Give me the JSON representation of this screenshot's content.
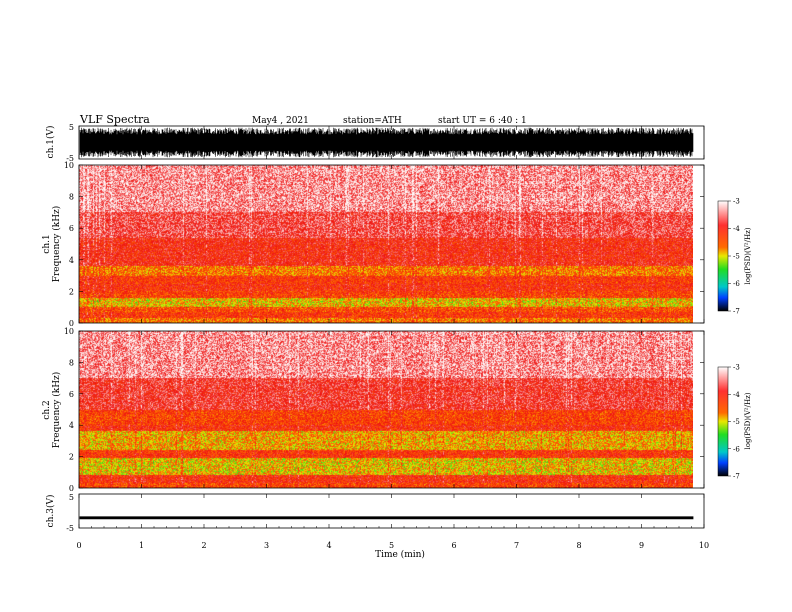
{
  "header": {
    "title": "VLF  Spectra",
    "date": "May4  , 2021",
    "station": "station=ATH",
    "start": "start  UT  =   6  :40 : 1"
  },
  "chart_data": [
    {
      "type": "line",
      "name": "ch1-waveform",
      "ylabel": "ch.1(V)",
      "ylim": [
        -5,
        5
      ],
      "yticks": [
        "5",
        "-5"
      ],
      "description_amplitude": 4.5
    },
    {
      "type": "heatmap",
      "name": "ch1-spectrogram",
      "ylabel": "ch.1\nFrequency (kHz)",
      "ylabel_lines": [
        "ch.1",
        "Frequency  (kHz)"
      ],
      "ylim": [
        0,
        10
      ],
      "yticks": [
        "0",
        "2",
        "4",
        "6",
        "8",
        "10"
      ],
      "bands": [
        {
          "f": [
            0.0,
            0.3
          ],
          "level": -4.6
        },
        {
          "f": [
            0.3,
            0.7
          ],
          "level": -4.2
        },
        {
          "f": [
            0.7,
            1.0
          ],
          "level": -4.4
        },
        {
          "f": [
            1.0,
            1.6
          ],
          "level": -4.9
        },
        {
          "f": [
            1.6,
            2.0
          ],
          "level": -4.3
        },
        {
          "f": [
            2.0,
            2.5
          ],
          "level": -4.1
        },
        {
          "f": [
            2.5,
            3.0
          ],
          "level": -4.2
        },
        {
          "f": [
            3.0,
            3.6
          ],
          "level": -4.6
        },
        {
          "f": [
            3.6,
            5.4
          ],
          "level": -4.0
        },
        {
          "f": [
            5.4,
            7.0
          ],
          "level": -3.7
        },
        {
          "f": [
            7.0,
            10.0
          ],
          "level": -3.4
        }
      ],
      "colorbar": {
        "label": "log(PSD)(V²/Hz)",
        "ticks": [
          "-3",
          "-4",
          "-5",
          "-6",
          "-7"
        ],
        "range": [
          -7,
          -3
        ]
      }
    },
    {
      "type": "heatmap",
      "name": "ch2-spectrogram",
      "ylabel_lines": [
        "ch.2",
        "Frequency  (kHz)"
      ],
      "ylim": [
        0,
        10
      ],
      "yticks": [
        "0",
        "2",
        "4",
        "6",
        "8",
        "10"
      ],
      "bands": [
        {
          "f": [
            0.0,
            0.3
          ],
          "level": -4.3
        },
        {
          "f": [
            0.3,
            0.8
          ],
          "level": -4.1
        },
        {
          "f": [
            0.8,
            1.9
          ],
          "level": -4.9
        },
        {
          "f": [
            1.9,
            2.4
          ],
          "level": -4.2
        },
        {
          "f": [
            2.4,
            3.6
          ],
          "level": -4.8
        },
        {
          "f": [
            3.6,
            4.0
          ],
          "level": -4.1
        },
        {
          "f": [
            4.0,
            5.0
          ],
          "level": -4.3
        },
        {
          "f": [
            5.0,
            7.0
          ],
          "level": -3.8
        },
        {
          "f": [
            7.0,
            10.0
          ],
          "level": -3.4
        }
      ],
      "colorbar": {
        "label": "log(PSD)(V²/Hz)",
        "ticks": [
          "-3",
          "-4",
          "-5",
          "-6",
          "-7"
        ],
        "range": [
          -7,
          -3
        ]
      }
    },
    {
      "type": "line",
      "name": "ch3-waveform",
      "ylabel": "ch.3(V)",
      "ylim": [
        -5,
        5
      ],
      "yticks": [
        "5",
        "-5"
      ],
      "description_amplitude": 0.4,
      "offset": -2.0
    }
  ],
  "xaxis": {
    "label": "Time  (min)",
    "ticks": [
      "0",
      "1",
      "2",
      "3",
      "4",
      "5",
      "6",
      "7",
      "8",
      "9",
      "10"
    ],
    "xlim": [
      0,
      10
    ],
    "data_end": 9.83
  },
  "colors": {
    "white": "#ffffff",
    "red": "#ee1111",
    "yellow": "#e8e800",
    "green": "#22dd22",
    "blue": "#0040ff",
    "black": "#000000"
  }
}
